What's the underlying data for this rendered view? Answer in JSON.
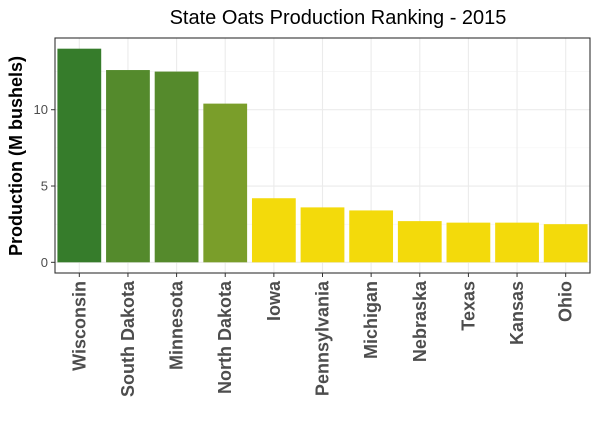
{
  "chart_data": {
    "type": "bar",
    "title": "State Oats Production Ranking - 2015",
    "xlabel": "",
    "ylabel": "Production (M bushels)",
    "categories": [
      "Wisconsin",
      "South Dakota",
      "Minnesota",
      "North Dakota",
      "Iowa",
      "Pennsylvania",
      "Michigan",
      "Nebraska",
      "Texas",
      "Kansas",
      "Ohio"
    ],
    "values": [
      14.0,
      12.6,
      12.5,
      10.4,
      4.2,
      3.6,
      3.4,
      2.7,
      2.6,
      2.6,
      2.5
    ],
    "bar_colors": [
      "#367C2B",
      "#548A2C",
      "#558A2C",
      "#7A9E2A",
      "#F3DA0B",
      "#F3DA0B",
      "#F3DA0B",
      "#F3DA0B",
      "#F3DA0B",
      "#F3DA0B",
      "#F3DA0B"
    ],
    "ylim": [
      -0.7,
      14.7
    ],
    "yticks": [
      0,
      5,
      10
    ],
    "grid": true,
    "legend": "none"
  }
}
